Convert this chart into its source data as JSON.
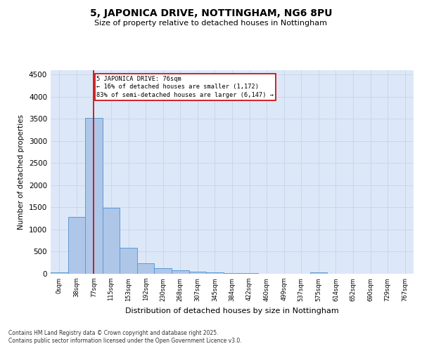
{
  "title": "5, JAPONICA DRIVE, NOTTINGHAM, NG6 8PU",
  "subtitle": "Size of property relative to detached houses in Nottingham",
  "xlabel": "Distribution of detached houses by size in Nottingham",
  "ylabel": "Number of detached properties",
  "bin_labels": [
    "0sqm",
    "38sqm",
    "77sqm",
    "115sqm",
    "153sqm",
    "192sqm",
    "230sqm",
    "268sqm",
    "307sqm",
    "345sqm",
    "384sqm",
    "422sqm",
    "460sqm",
    "499sqm",
    "537sqm",
    "575sqm",
    "614sqm",
    "652sqm",
    "690sqm",
    "729sqm",
    "767sqm"
  ],
  "bar_heights": [
    30,
    1280,
    3520,
    1490,
    590,
    240,
    120,
    80,
    50,
    30,
    20,
    15,
    0,
    0,
    0,
    30,
    0,
    0,
    0,
    0,
    0
  ],
  "bar_color": "#aec6e8",
  "bar_edge_color": "#5b9bd5",
  "grid_color": "#c8d4e8",
  "property_line_x": 2,
  "property_line_color": "#cc0000",
  "annotation_text": "5 JAPONICA DRIVE: 76sqm\n← 16% of detached houses are smaller (1,172)\n83% of semi-detached houses are larger (6,147) →",
  "annotation_box_color": "#cc0000",
  "ylim": [
    0,
    4600
  ],
  "yticks": [
    0,
    500,
    1000,
    1500,
    2000,
    2500,
    3000,
    3500,
    4000,
    4500
  ],
  "footnote1": "Contains HM Land Registry data © Crown copyright and database right 2025.",
  "footnote2": "Contains public sector information licensed under the Open Government Licence v3.0.",
  "background_color": "#dce8f8",
  "fig_background": "#ffffff"
}
